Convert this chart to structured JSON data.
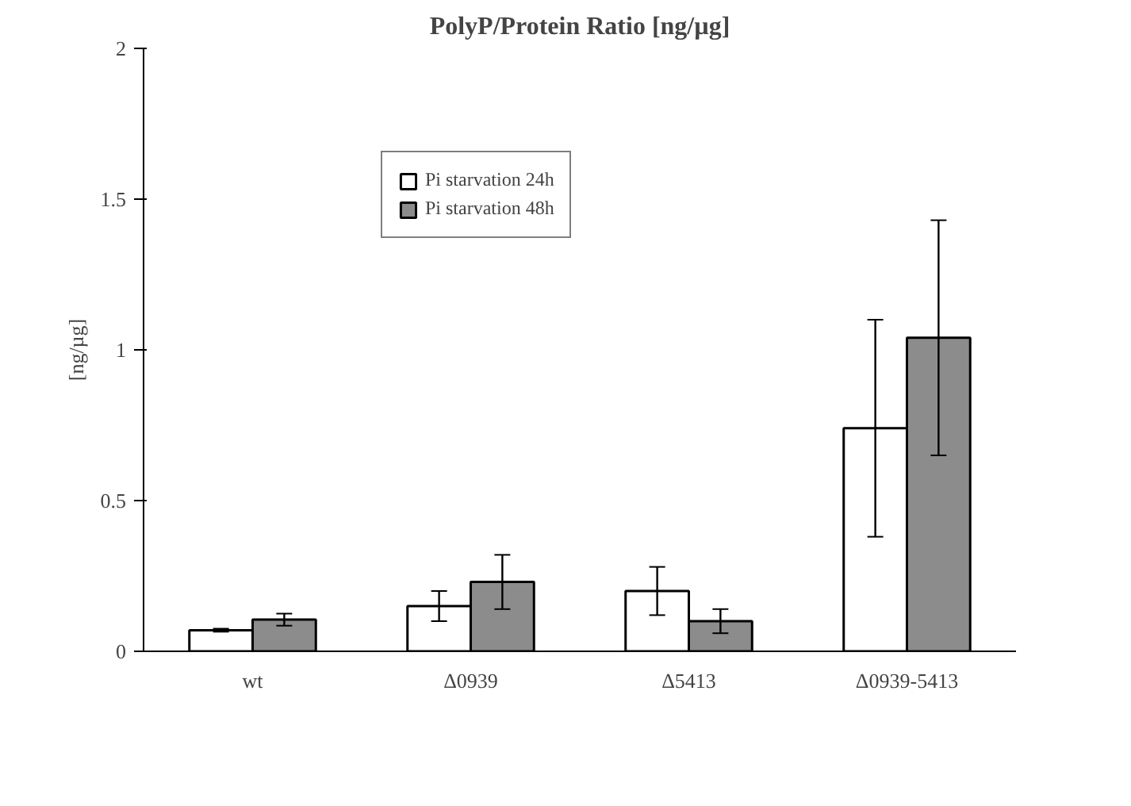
{
  "chart_data": {
    "type": "bar",
    "title": "PolyP/Protein Ratio [ng/µg]",
    "ylabel": "[ng/µg]",
    "categories": [
      "wt",
      "Δ0939",
      "Δ5413",
      "Δ0939-5413"
    ],
    "series": [
      {
        "name": "Pi starvation 24h",
        "color": "#ffffff",
        "values": [
          0.07,
          0.15,
          0.2,
          0.74
        ],
        "errors": [
          0.005,
          0.05,
          0.08,
          0.36
        ]
      },
      {
        "name": "Pi starvation 48h",
        "color": "#8c8c8c",
        "values": [
          0.105,
          0.23,
          0.1,
          1.04
        ],
        "errors": [
          0.02,
          0.09,
          0.04,
          0.39
        ]
      }
    ],
    "ylim": [
      0,
      2
    ],
    "yticks": [
      0,
      0.5,
      1,
      1.5,
      2
    ],
    "grid": false,
    "legend": "top left"
  }
}
